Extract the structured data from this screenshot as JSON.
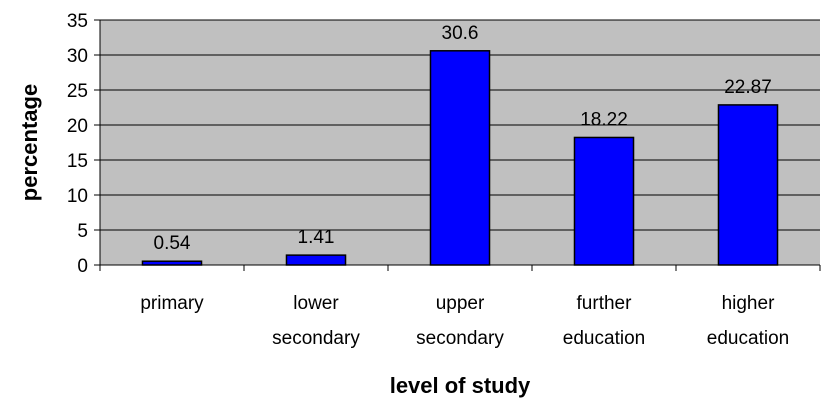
{
  "chart_data": {
    "type": "bar",
    "categories": [
      [
        "primary"
      ],
      [
        "lower",
        "secondary"
      ],
      [
        "upper",
        "secondary"
      ],
      [
        "further",
        "education"
      ],
      [
        "higher",
        "education"
      ]
    ],
    "values": [
      0.54,
      1.41,
      30.6,
      18.22,
      22.87
    ],
    "data_labels": [
      "0.54",
      "1.41",
      "30.6",
      "18.22",
      "22.87"
    ],
    "title": "",
    "xlabel": "level of study",
    "ylabel": "percentage",
    "ylim": [
      0,
      35
    ],
    "yticks": [
      0,
      5,
      10,
      15,
      20,
      25,
      30,
      35
    ],
    "grid": true,
    "legend": "none",
    "colors": {
      "plot_background": "#c0c0c0",
      "bar_fill": "#0000ff",
      "bar_stroke": "#000000",
      "grid": "#000000"
    }
  }
}
